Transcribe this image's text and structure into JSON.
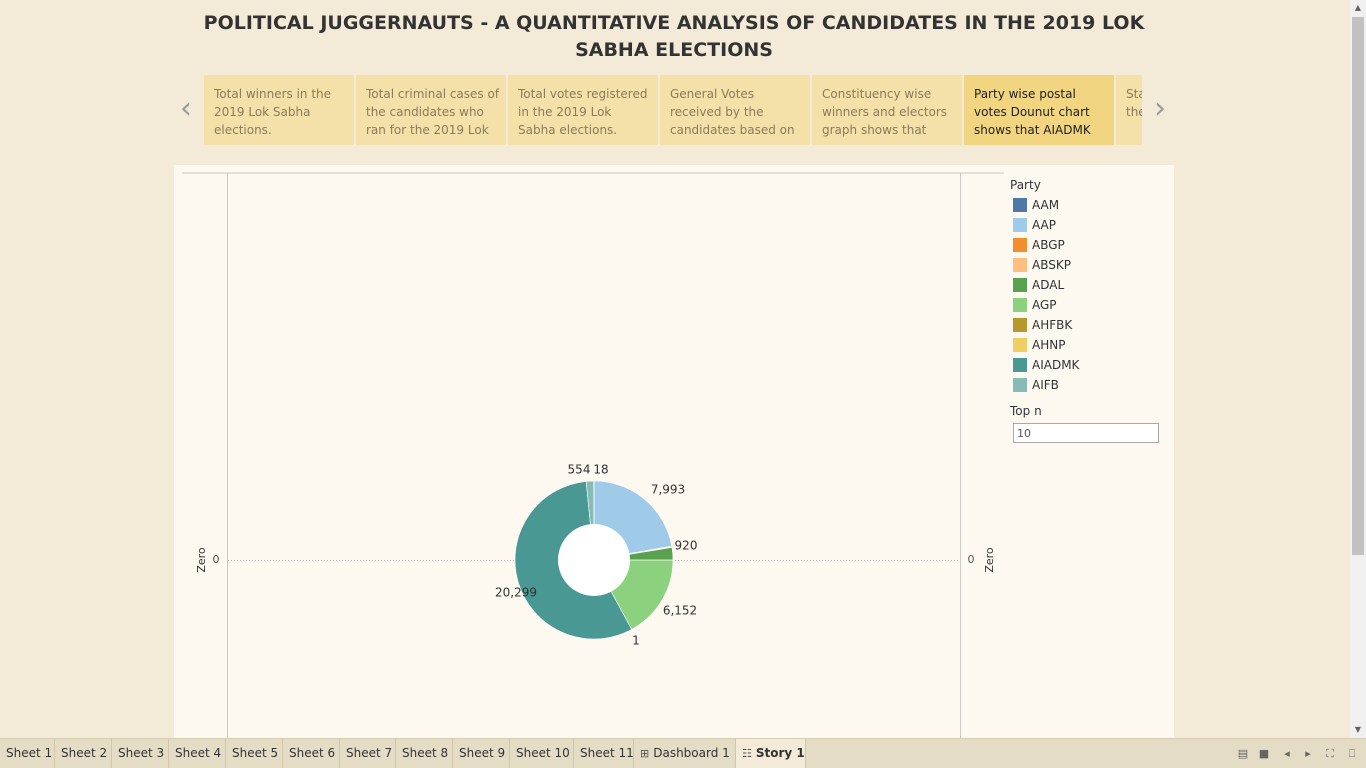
{
  "title": "POLITICAL JUGGERNAUTS - A QUANTITATIVE ANALYSIS OF CANDIDATES IN THE 2019 LOK SABHA ELECTIONS",
  "story_points": [
    {
      "text": "Total winners in the 2019 Lok Sabha elections.",
      "active": false
    },
    {
      "text": "Total criminal cases of the candidates who ran for the 2019 Lok",
      "active": false
    },
    {
      "text": "Total votes registered in the 2019 Lok Sabha elections.",
      "active": false
    },
    {
      "text": "General Votes received by the candidates based on",
      "active": false
    },
    {
      "text": "Constituency wise winners and electors graph shows that",
      "active": false
    },
    {
      "text": "Party wise postal votes Dounut chart shows that AIADMK",
      "active": true
    },
    {
      "text": "State wise trend of the",
      "active": false
    }
  ],
  "icons": {
    "prev": "chevron-left-icon",
    "next": "chevron-right-icon",
    "dashboard": "grid-icon",
    "story": "book-icon"
  },
  "axis": {
    "left_label": "Zero",
    "right_label": "Zero",
    "left_tick": "0",
    "right_tick": "0"
  },
  "chart_data": {
    "type": "pie",
    "donut": true,
    "slices": [
      {
        "party": "AAP",
        "value": 7993,
        "label": "7,993",
        "color": "#a0cbe8"
      },
      {
        "party": "ABGP",
        "value": 60,
        "label": "",
        "color": "#f28e2b"
      },
      {
        "party": "ABSKP",
        "value": 45,
        "label": "",
        "color": "#ffbe7d"
      },
      {
        "party": "ADAL",
        "value": 920,
        "label": "920",
        "color": "#59a14f"
      },
      {
        "party": "AGP",
        "value": 6152,
        "label": "6,152",
        "color": "#8cd17d"
      },
      {
        "party": "AHFBK",
        "value": 1,
        "label": "1",
        "color": "#b6992d"
      },
      {
        "party": "AIADMK",
        "value": 20299,
        "label": "20,299",
        "color": "#499894"
      },
      {
        "party": "AIFB",
        "value": 554,
        "label": "554",
        "color": "#86bcb6"
      },
      {
        "party": "AAM",
        "value": 18,
        "label": "18",
        "color": "#4e79a7"
      }
    ]
  },
  "legend": {
    "title": "Party",
    "items": [
      {
        "label": "AAM",
        "color": "#4e79a7"
      },
      {
        "label": "AAP",
        "color": "#a0cbe8"
      },
      {
        "label": "ABGP",
        "color": "#f28e2b"
      },
      {
        "label": "ABSKP",
        "color": "#ffbe7d"
      },
      {
        "label": "ADAL",
        "color": "#59a14f"
      },
      {
        "label": "AGP",
        "color": "#8cd17d"
      },
      {
        "label": "AHFBK",
        "color": "#b6992d"
      },
      {
        "label": "AHNP",
        "color": "#f1ce63"
      },
      {
        "label": "AIADMK",
        "color": "#499894"
      },
      {
        "label": "AIFB",
        "color": "#86bcb6"
      }
    ]
  },
  "top_n": {
    "title": "Top n",
    "value": "10"
  },
  "tabs": [
    {
      "label": "Sheet 1",
      "icon": ""
    },
    {
      "label": "Sheet 2",
      "icon": ""
    },
    {
      "label": "Sheet 3",
      "icon": ""
    },
    {
      "label": "Sheet 4",
      "icon": ""
    },
    {
      "label": "Sheet 5",
      "icon": ""
    },
    {
      "label": "Sheet 6",
      "icon": ""
    },
    {
      "label": "Sheet 7",
      "icon": ""
    },
    {
      "label": "Sheet 8",
      "icon": ""
    },
    {
      "label": "Sheet 9",
      "icon": ""
    },
    {
      "label": "Sheet 10",
      "icon": ""
    },
    {
      "label": "Sheet 11",
      "icon": ""
    },
    {
      "label": "Dashboard 1",
      "icon": "grid-icon"
    },
    {
      "label": "Story 1",
      "icon": "book-icon",
      "active": true
    }
  ]
}
